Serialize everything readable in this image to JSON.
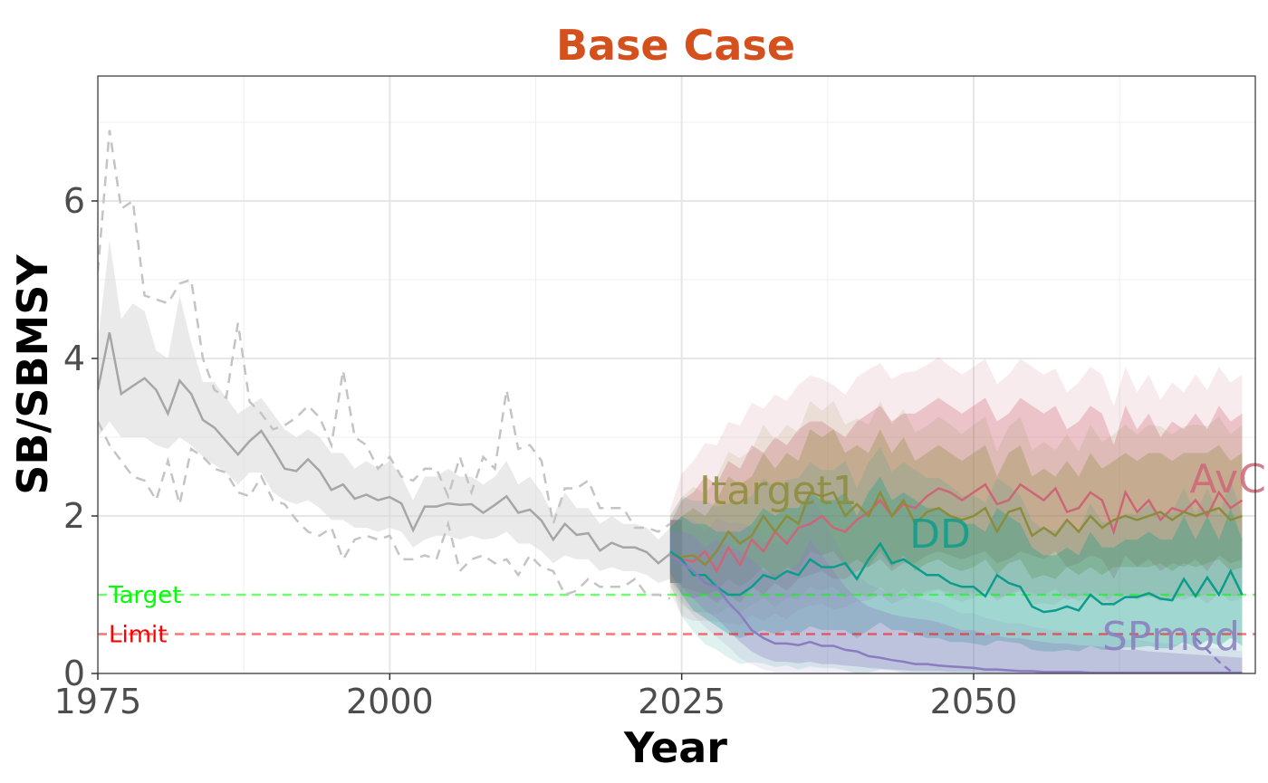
{
  "chart_data": {
    "type": "line",
    "title": "Base Case",
    "xlabel": "Year",
    "ylabel": "SB/SBMSY",
    "xlim": [
      1975,
      2073
    ],
    "ylim": [
      0,
      7.6
    ],
    "x_ticks": [
      "1975",
      "2000",
      "2025",
      "2050"
    ],
    "y_ticks": [
      "0",
      "2",
      "4",
      "6"
    ],
    "grid": true,
    "title_color": "#d4501c",
    "reference_lines": [
      {
        "label": "Target",
        "value": 1.0,
        "color": "#00ff00"
      },
      {
        "label": "Limit",
        "value": 0.5,
        "color": "#ff0000"
      }
    ],
    "historical": {
      "color": "#a6a6a6",
      "x": [
        1975,
        1976,
        1977,
        1978,
        1979,
        1980,
        1981,
        1982,
        1983,
        1984,
        1985,
        1986,
        1987,
        1988,
        1989,
        1990,
        1991,
        1992,
        1993,
        1994,
        1995,
        1996,
        1997,
        1998,
        1999,
        2000,
        2001,
        2002,
        2003,
        2004,
        2005,
        2006,
        2007,
        2008,
        2009,
        2010,
        2011,
        2012,
        2013,
        2014,
        2015,
        2016,
        2017,
        2018,
        2019,
        2020,
        2021,
        2022,
        2023,
        2024
      ],
      "median": [
        3.6,
        4.33,
        3.55,
        3.65,
        3.75,
        3.6,
        3.3,
        3.72,
        3.55,
        3.22,
        3.12,
        2.95,
        2.78,
        2.95,
        3.08,
        2.85,
        2.6,
        2.57,
        2.72,
        2.57,
        2.33,
        2.4,
        2.22,
        2.27,
        2.2,
        2.24,
        2.16,
        1.82,
        2.12,
        2.12,
        2.16,
        2.14,
        2.15,
        2.04,
        2.14,
        2.25,
        2.04,
        2.08,
        1.94,
        1.7,
        1.9,
        1.76,
        1.78,
        1.56,
        1.66,
        1.6,
        1.6,
        1.54,
        1.4,
        1.52
      ],
      "lower": [
        3.0,
        3.2,
        3.0,
        3.0,
        3.0,
        2.9,
        2.85,
        3.0,
        2.9,
        2.75,
        2.65,
        2.55,
        2.4,
        2.55,
        2.55,
        2.3,
        2.2,
        2.15,
        2.2,
        2.1,
        1.95,
        1.95,
        1.85,
        1.85,
        1.8,
        1.85,
        1.8,
        1.6,
        1.7,
        1.75,
        1.75,
        1.7,
        1.75,
        1.7,
        1.72,
        1.8,
        1.65,
        1.65,
        1.55,
        1.4,
        1.5,
        1.45,
        1.45,
        1.3,
        1.35,
        1.3,
        1.3,
        1.25,
        1.15,
        1.2
      ],
      "upper": [
        4.2,
        5.5,
        4.5,
        4.7,
        4.6,
        4.1,
        4.0,
        4.8,
        4.2,
        3.7,
        3.7,
        3.5,
        3.3,
        3.4,
        3.5,
        3.3,
        3.1,
        3.0,
        3.1,
        3.0,
        2.8,
        2.8,
        2.6,
        2.7,
        2.6,
        2.7,
        2.5,
        2.2,
        2.5,
        2.5,
        2.6,
        2.5,
        2.5,
        2.4,
        2.5,
        2.7,
        2.4,
        2.5,
        2.3,
        2.0,
        2.3,
        2.1,
        2.1,
        1.9,
        2.0,
        1.9,
        1.9,
        1.85,
        1.7,
        1.85
      ],
      "sim1": [
        5.1,
        6.9,
        5.9,
        6.0,
        4.8,
        4.75,
        4.7,
        4.95,
        5.0,
        4.0,
        3.6,
        3.5,
        4.45,
        3.45,
        3.3,
        3.1,
        3.15,
        3.25,
        3.4,
        3.25,
        2.9,
        3.85,
        3.0,
        2.9,
        2.6,
        2.75,
        2.5,
        2.45,
        2.6,
        2.6,
        2.25,
        2.75,
        2.3,
        2.75,
        2.6,
        3.6,
        2.85,
        2.9,
        2.7,
        1.9,
        2.35,
        2.35,
        2.45,
        2.1,
        2.1,
        2.1,
        1.85,
        1.85,
        1.8,
        1.9
      ],
      "sim2": [
        3.2,
        2.9,
        2.7,
        2.5,
        2.45,
        2.2,
        2.7,
        2.15,
        2.85,
        2.75,
        2.6,
        2.55,
        2.3,
        2.25,
        2.5,
        2.2,
        2.15,
        1.95,
        1.8,
        1.75,
        1.85,
        1.45,
        1.7,
        1.75,
        1.7,
        1.75,
        1.45,
        1.45,
        1.5,
        1.45,
        1.9,
        1.3,
        1.45,
        1.5,
        1.4,
        1.45,
        1.25,
        1.5,
        1.35,
        1.3,
        1.0,
        1.05,
        1.2,
        1.1,
        1.1,
        1.1,
        1.2,
        1.0,
        1.0,
        0.95
      ]
    },
    "series": [
      {
        "name": "AvC",
        "color": "#cc6677",
        "x": [
          2024,
          2025,
          2026,
          2027,
          2028,
          2029,
          2030,
          2031,
          2032,
          2033,
          2034,
          2035,
          2036,
          2037,
          2038,
          2039,
          2040,
          2041,
          2042,
          2043,
          2044,
          2045,
          2046,
          2047,
          2048,
          2049,
          2050,
          2051,
          2052,
          2053,
          2054,
          2055,
          2056,
          2057,
          2058,
          2059,
          2060,
          2061,
          2062,
          2063,
          2064,
          2065,
          2066,
          2067,
          2068,
          2069,
          2070,
          2071,
          2072,
          2073
        ],
        "median": [
          1.5,
          1.45,
          1.42,
          1.55,
          1.3,
          1.6,
          1.38,
          1.7,
          1.55,
          1.8,
          1.65,
          1.85,
          1.9,
          2.0,
          1.85,
          1.8,
          1.95,
          2.05,
          2.2,
          2.0,
          2.15,
          2.1,
          2.25,
          2.35,
          2.3,
          2.2,
          2.3,
          2.4,
          2.15,
          2.2,
          2.4,
          2.3,
          2.2,
          2.35,
          2.05,
          2.1,
          2.3,
          2.2,
          1.8,
          2.3,
          2.05,
          2.2,
          1.95,
          2.1,
          2.05,
          2.2,
          2.0,
          2.3,
          2.1,
          2.2
        ],
        "lower": [
          1.2,
          1.0,
          0.95,
          1.0,
          0.9,
          1.0,
          0.9,
          1.1,
          1.0,
          1.15,
          1.05,
          1.2,
          1.25,
          1.3,
          1.2,
          1.2,
          1.3,
          1.35,
          1.45,
          1.3,
          1.4,
          1.4,
          1.5,
          1.55,
          1.5,
          1.45,
          1.5,
          1.55,
          1.4,
          1.45,
          1.55,
          1.5,
          1.45,
          1.55,
          1.35,
          1.4,
          1.5,
          1.45,
          1.2,
          1.5,
          1.35,
          1.45,
          1.3,
          1.4,
          1.35,
          1.45,
          1.3,
          1.5,
          1.4,
          1.45
        ],
        "upper": [
          1.9,
          2.2,
          2.3,
          2.5,
          2.4,
          2.7,
          2.6,
          2.9,
          2.8,
          3.0,
          2.9,
          3.1,
          3.2,
          3.2,
          3.1,
          3.0,
          3.2,
          3.3,
          3.4,
          3.2,
          3.3,
          3.3,
          3.4,
          3.5,
          3.4,
          3.3,
          3.4,
          3.5,
          3.2,
          3.3,
          3.5,
          3.4,
          3.3,
          3.4,
          3.1,
          3.2,
          3.4,
          3.3,
          2.9,
          3.4,
          3.1,
          3.3,
          3.0,
          3.2,
          3.1,
          3.3,
          3.1,
          3.4,
          3.2,
          3.3
        ]
      },
      {
        "name": "Itarget1",
        "color": "#8c8c3c",
        "x": [
          2024,
          2025,
          2026,
          2027,
          2028,
          2029,
          2030,
          2031,
          2032,
          2033,
          2034,
          2035,
          2036,
          2037,
          2038,
          2039,
          2040,
          2041,
          2042,
          2043,
          2044,
          2045,
          2046,
          2047,
          2048,
          2049,
          2050,
          2051,
          2052,
          2053,
          2054,
          2055,
          2056,
          2057,
          2058,
          2059,
          2060,
          2061,
          2062,
          2063,
          2064,
          2065,
          2066,
          2067,
          2068,
          2069,
          2070,
          2071,
          2072,
          2073
        ],
        "median": [
          1.5,
          1.48,
          1.5,
          1.38,
          1.55,
          1.8,
          1.65,
          1.75,
          2.0,
          1.8,
          2.0,
          1.9,
          2.3,
          2.25,
          2.3,
          2.0,
          2.15,
          2.0,
          2.3,
          2.0,
          2.2,
          1.9,
          2.05,
          2.1,
          2.0,
          1.95,
          2.0,
          2.1,
          1.8,
          2.05,
          2.1,
          1.75,
          1.85,
          1.75,
          1.95,
          1.8,
          2.0,
          1.85,
          1.95,
          2.0,
          1.95,
          2.0,
          2.05,
          1.95,
          2.05,
          2.0,
          2.05,
          2.1,
          1.95,
          2.0
        ],
        "lower": [
          1.25,
          1.1,
          1.05,
          1.0,
          1.05,
          1.2,
          1.1,
          1.2,
          1.35,
          1.2,
          1.35,
          1.3,
          1.55,
          1.5,
          1.55,
          1.35,
          1.45,
          1.35,
          1.55,
          1.35,
          1.5,
          1.3,
          1.4,
          1.45,
          1.35,
          1.3,
          1.35,
          1.45,
          1.25,
          1.4,
          1.45,
          1.2,
          1.25,
          1.2,
          1.35,
          1.25,
          1.35,
          1.25,
          1.35,
          1.35,
          1.35,
          1.35,
          1.4,
          1.3,
          1.4,
          1.35,
          1.4,
          1.45,
          1.3,
          1.35
        ],
        "upper": [
          1.85,
          2.0,
          2.1,
          2.0,
          2.2,
          2.5,
          2.4,
          2.5,
          2.8,
          2.6,
          2.8,
          2.7,
          3.1,
          3.0,
          3.1,
          2.8,
          2.9,
          2.8,
          3.1,
          2.8,
          3.0,
          2.7,
          2.8,
          2.9,
          2.8,
          2.7,
          2.8,
          2.9,
          2.5,
          2.8,
          2.9,
          2.5,
          2.6,
          2.5,
          2.7,
          2.5,
          2.8,
          2.6,
          2.7,
          2.8,
          2.7,
          2.8,
          2.8,
          2.7,
          2.8,
          2.8,
          2.8,
          2.9,
          2.7,
          2.8
        ]
      },
      {
        "name": "DD",
        "color": "#0d9c8b",
        "x": [
          2024,
          2025,
          2026,
          2027,
          2028,
          2029,
          2030,
          2031,
          2032,
          2033,
          2034,
          2035,
          2036,
          2037,
          2038,
          2039,
          2040,
          2041,
          2042,
          2043,
          2044,
          2045,
          2046,
          2047,
          2048,
          2049,
          2050,
          2051,
          2052,
          2053,
          2054,
          2055,
          2056,
          2057,
          2058,
          2059,
          2060,
          2061,
          2062,
          2063,
          2064,
          2065,
          2066,
          2067,
          2068,
          2069,
          2070,
          2071,
          2072,
          2073
        ],
        "median": [
          1.55,
          1.45,
          1.25,
          1.25,
          1.1,
          1.0,
          1.0,
          1.1,
          1.25,
          1.2,
          1.3,
          1.25,
          1.45,
          1.35,
          1.35,
          1.4,
          1.2,
          1.45,
          1.65,
          1.4,
          1.45,
          1.35,
          1.25,
          1.25,
          1.15,
          1.1,
          1.1,
          0.98,
          1.25,
          1.15,
          1.1,
          0.85,
          0.78,
          0.8,
          0.85,
          0.8,
          1.0,
          0.88,
          0.88,
          0.97,
          0.97,
          1.02,
          0.95,
          0.93,
          1.2,
          0.98,
          1.22,
          1.0,
          1.3,
          1.0
        ],
        "lower": [
          1.3,
          1.0,
          0.8,
          0.7,
          0.6,
          0.5,
          0.45,
          0.5,
          0.55,
          0.5,
          0.55,
          0.5,
          0.6,
          0.55,
          0.55,
          0.55,
          0.45,
          0.55,
          0.65,
          0.55,
          0.55,
          0.5,
          0.45,
          0.45,
          0.4,
          0.4,
          0.38,
          0.35,
          0.42,
          0.4,
          0.38,
          0.3,
          0.28,
          0.28,
          0.3,
          0.28,
          0.35,
          0.3,
          0.3,
          0.33,
          0.33,
          0.35,
          0.32,
          0.32,
          0.4,
          0.33,
          0.42,
          0.35,
          0.45,
          0.35
        ],
        "upper": [
          1.85,
          2.0,
          1.9,
          1.9,
          1.8,
          1.8,
          1.8,
          1.9,
          2.1,
          2.0,
          2.1,
          2.1,
          2.3,
          2.2,
          2.2,
          2.3,
          2.0,
          2.3,
          2.5,
          2.2,
          2.3,
          2.2,
          2.1,
          2.1,
          2.0,
          1.9,
          1.9,
          1.8,
          2.1,
          2.0,
          1.9,
          1.6,
          1.5,
          1.5,
          1.6,
          1.5,
          1.8,
          1.6,
          1.6,
          1.7,
          1.7,
          1.8,
          1.7,
          1.7,
          2.0,
          1.7,
          2.0,
          1.7,
          2.1,
          1.7
        ]
      },
      {
        "name": "SPmod",
        "color": "#8a7cc0",
        "x": [
          2024,
          2025,
          2026,
          2027,
          2028,
          2029,
          2030,
          2031,
          2032,
          2033,
          2034,
          2035,
          2036,
          2037,
          2038,
          2039,
          2040,
          2041,
          2042,
          2043,
          2044,
          2045,
          2046,
          2047,
          2048,
          2049,
          2050,
          2051,
          2052,
          2053,
          2054,
          2055,
          2056,
          2057,
          2058,
          2059,
          2060,
          2061,
          2062,
          2063,
          2064,
          2065,
          2066,
          2067,
          2068,
          2069,
          2070,
          2071,
          2072,
          2073
        ],
        "median": [
          1.5,
          1.4,
          1.3,
          1.15,
          1.1,
          0.9,
          0.75,
          0.55,
          0.45,
          0.38,
          0.38,
          0.36,
          0.4,
          0.35,
          0.35,
          0.3,
          0.28,
          0.22,
          0.2,
          0.17,
          0.15,
          0.12,
          0.12,
          0.1,
          0.09,
          0.08,
          0.07,
          0.05,
          0.05,
          0.04,
          0.03,
          0.03,
          0.02,
          0.02,
          0.02,
          0.02,
          0.01,
          0.01,
          0.01,
          0.01,
          0.01,
          0.01,
          0.01,
          0.01,
          0.01,
          0.01,
          0.01,
          0.01,
          0.01,
          0.01
        ],
        "lower": [
          1.3,
          1.1,
          0.95,
          0.8,
          0.7,
          0.55,
          0.4,
          0.28,
          0.2,
          0.15,
          0.15,
          0.13,
          0.15,
          0.12,
          0.12,
          0.1,
          0.09,
          0.07,
          0.06,
          0.05,
          0.04,
          0.03,
          0.03,
          0.03,
          0.02,
          0.02,
          0.02,
          0.01,
          0.01,
          0.01,
          0.01,
          0.01,
          0.0,
          0.0,
          0.0,
          0.0,
          0.0,
          0.0,
          0.0,
          0.0,
          0.0,
          0.0,
          0.0,
          0.0,
          0.0,
          0.0,
          0.0,
          0.0,
          0.0,
          0.0
        ],
        "upper": [
          1.8,
          1.8,
          1.75,
          1.6,
          1.7,
          1.6,
          1.55,
          1.45,
          1.3,
          1.25,
          1.3,
          1.4,
          1.7,
          1.5,
          1.3,
          1.1,
          0.95,
          0.85,
          0.8,
          0.75,
          0.72,
          0.7,
          0.68,
          0.65,
          0.6,
          0.55,
          0.55,
          0.5,
          0.48,
          0.45,
          0.45,
          0.42,
          0.4,
          0.38,
          0.38,
          0.36,
          0.35,
          0.34,
          0.32,
          0.3,
          0.3,
          0.28,
          0.27,
          0.26,
          0.25,
          0.24,
          0.23,
          0.22,
          0.21,
          0.2
        ]
      }
    ],
    "annotations": [
      {
        "text": "Itarget1",
        "x": 2026.5,
        "y": 2.15,
        "color": "#8c8c3c"
      },
      {
        "text": "AvC",
        "x": 2068.5,
        "y": 2.3,
        "color": "#cc6677"
      },
      {
        "text": "DD",
        "x": 2044.5,
        "y": 1.6,
        "color": "#0d9c8b"
      },
      {
        "text": "SPmod",
        "x": 2061,
        "y": 0.3,
        "color": "#8a7cc0"
      }
    ]
  }
}
